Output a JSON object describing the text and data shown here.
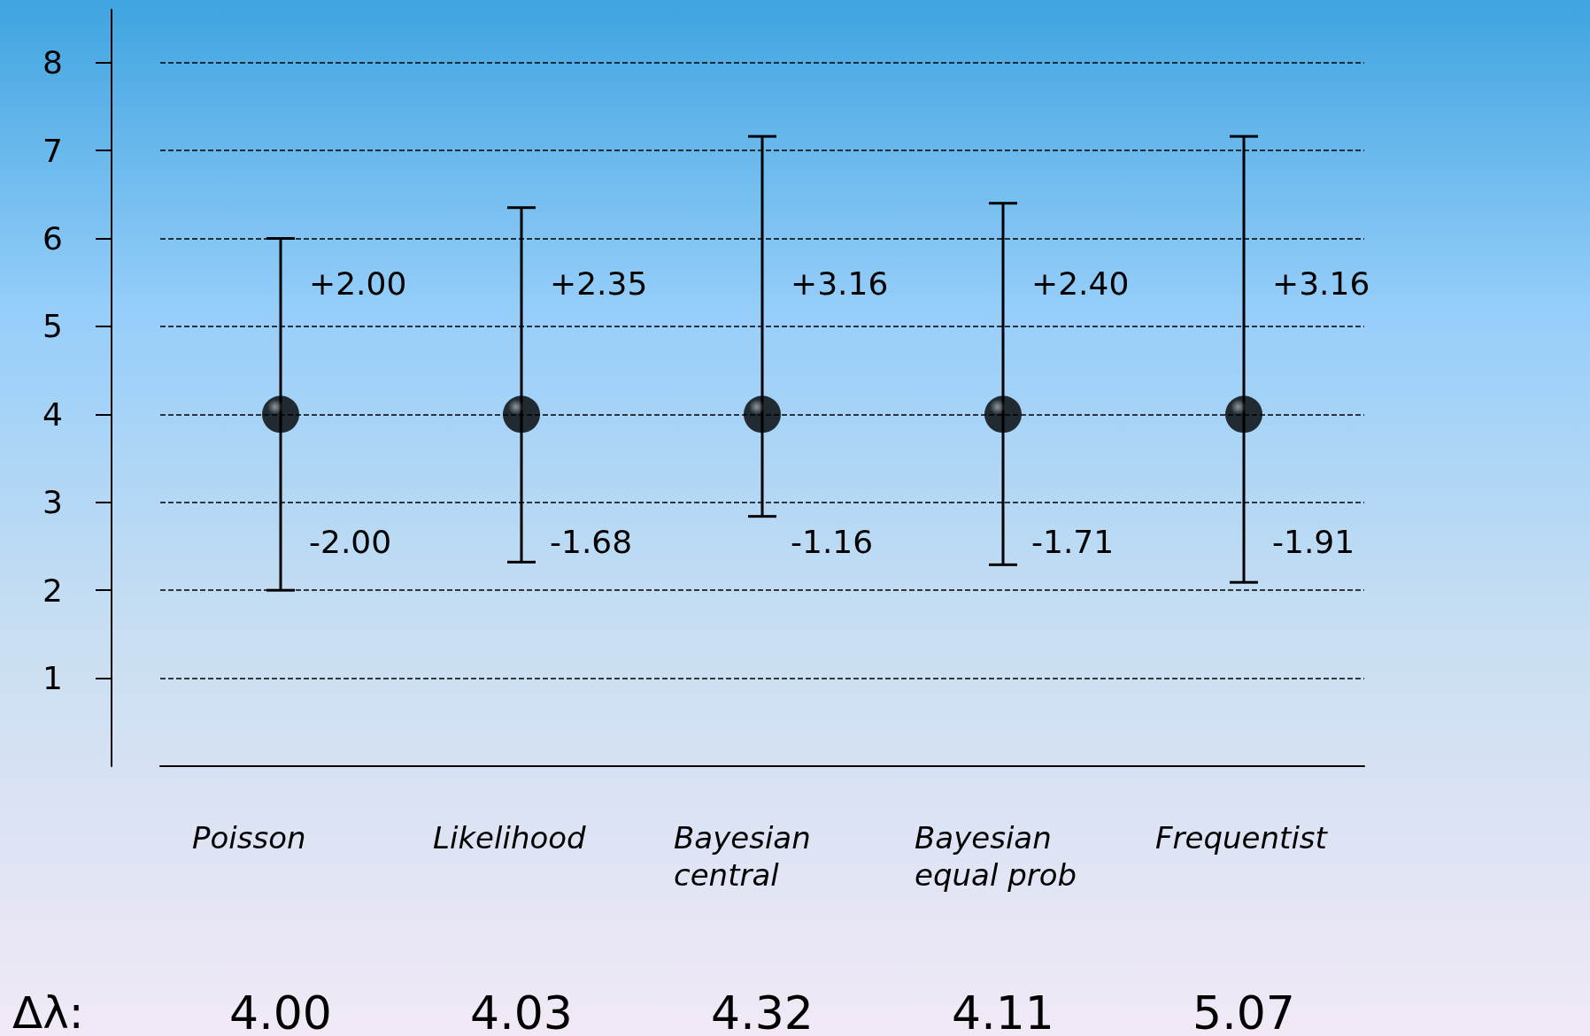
{
  "chart_data": {
    "type": "scatter",
    "categories": [
      "Poisson",
      "Likelihood",
      "Bayesian\ncentral",
      "Bayesian\nequal prob",
      "Frequentist"
    ],
    "series": [
      {
        "color": "#000000",
        "values": [
          4,
          4,
          4,
          4,
          4
        ],
        "errors": [
          [
            2.0,
            6.0
          ],
          [
            2.32,
            6.35
          ],
          [
            2.84,
            7.16
          ],
          [
            2.29,
            6.4
          ],
          [
            2.09,
            7.16
          ]
        ]
      }
    ],
    "ylim": [
      0,
      8.6
    ],
    "yticks": [
      1,
      2,
      3,
      4,
      5,
      6,
      7,
      8
    ],
    "grid": "y",
    "marker": "circle",
    "annotations": [
      "+2.00",
      "-2.00",
      "+2.35",
      "-1.68",
      "+3.16",
      "-1.16",
      "+2.40",
      "-1.71",
      "+3.16",
      "-1.91",
      "Δλ:",
      "4.00",
      "4.03",
      "4.32",
      "4.11",
      "5.07"
    ]
  }
}
